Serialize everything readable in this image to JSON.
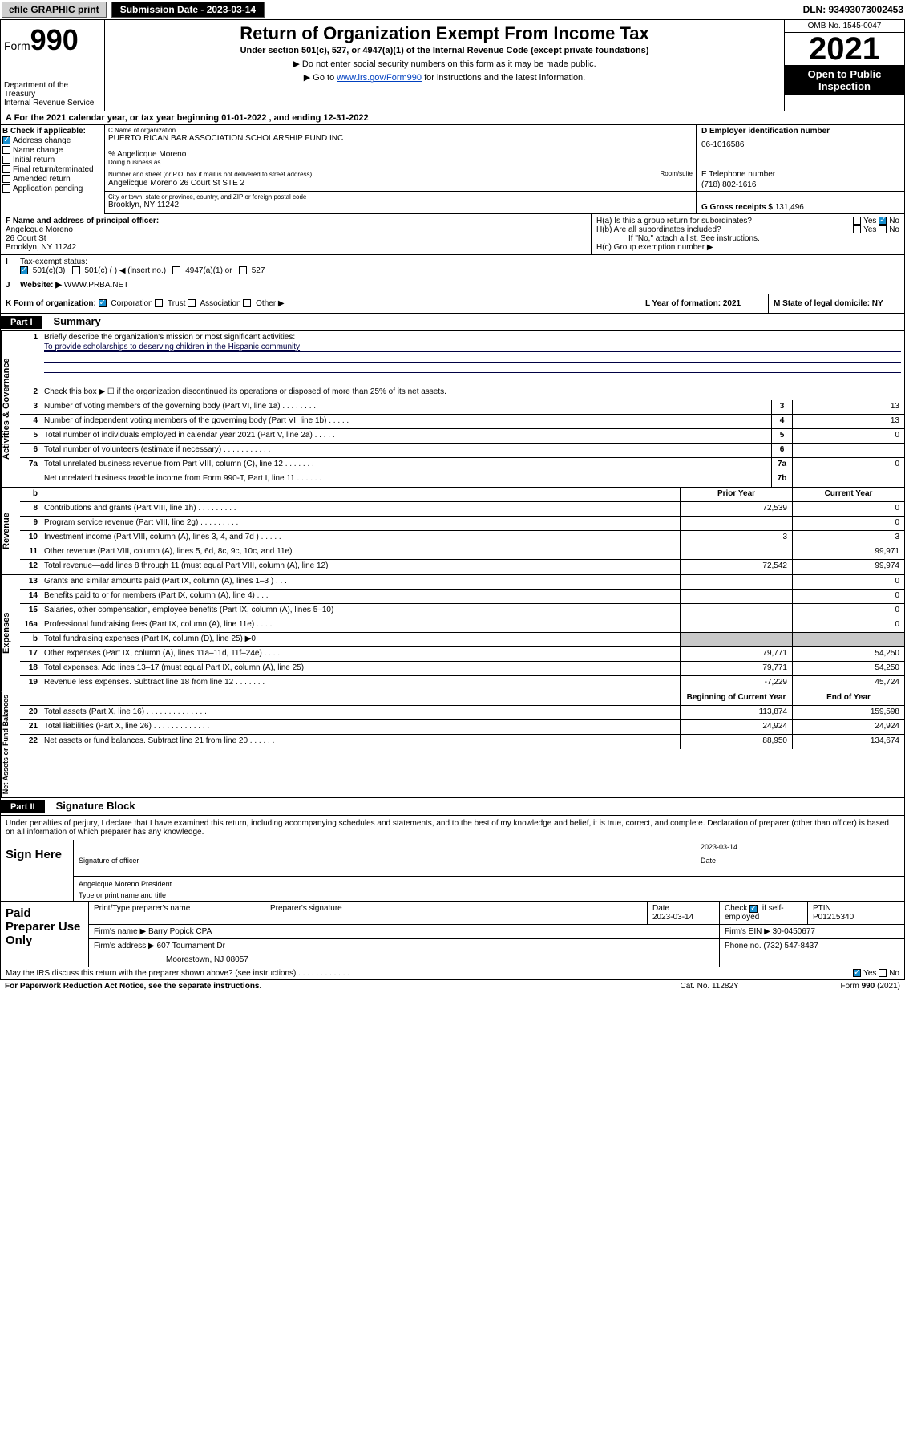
{
  "top": {
    "efile": "efile GRAPHIC print",
    "subdate_lbl": "Submission Date - 2023-03-14",
    "dln": "DLN: 93493073002453"
  },
  "hdr": {
    "form": "Form",
    "formno": "990",
    "dept": "Department of the Treasury",
    "irs": "Internal Revenue Service",
    "title": "Return of Organization Exempt From Income Tax",
    "sub": "Under section 501(c), 527, or 4947(a)(1) of the Internal Revenue Code (except private foundations)",
    "note1": "▶ Do not enter social security numbers on this form as it may be made public.",
    "note2_a": "▶ Go to ",
    "note2_link": "www.irs.gov/Form990",
    "note2_b": " for instructions and the latest information.",
    "omb": "OMB No. 1545-0047",
    "year": "2021",
    "open": "Open to Public Inspection"
  },
  "a": {
    "text": "For the 2021 calendar year, or tax year beginning 01-01-2022   , and ending 12-31-2022"
  },
  "b": {
    "label": "B Check if applicable:",
    "opts": [
      "Address change",
      "Name change",
      "Initial return",
      "Final return/terminated",
      "Amended return",
      "Application pending"
    ],
    "checked": [
      true,
      false,
      false,
      false,
      false,
      false
    ]
  },
  "c": {
    "name_lbl": "C Name of organization",
    "name": "PUERTO RICAN BAR ASSOCIATION SCHOLARSHIP FUND INC",
    "care_lbl": "% Angelicque Moreno",
    "dba_lbl": "Doing business as",
    "street_lbl": "Number and street (or P.O. box if mail is not delivered to street address)",
    "room_lbl": "Room/suite",
    "street": "Angelicque Moreno 26 Court St STE 2",
    "city_lbl": "City or town, state or province, country, and ZIP or foreign postal code",
    "city": "Brooklyn, NY  11242"
  },
  "d": {
    "lbl": "D Employer identification number",
    "val": "06-1016586"
  },
  "e": {
    "lbl": "E Telephone number",
    "val": "(718) 802-1616"
  },
  "g": {
    "lbl": "G Gross receipts $",
    "val": "131,496"
  },
  "f": {
    "lbl": "F  Name and address of principal officer:",
    "name": "Angelcque Moreno",
    "st": "26 Court St",
    "city": "Brooklyn, NY  11242"
  },
  "h": {
    "a": "H(a)  Is this a group return for subordinates?",
    "a_no": true,
    "b": "H(b)  Are all subordinates included?",
    "bnote": "If \"No,\" attach a list. See instructions.",
    "c": "H(c)  Group exemption number ▶"
  },
  "i": {
    "lbl": "Tax-exempt status:",
    "o1": "501(c)(3)",
    "o2": "501(c) (  ) ◀ (insert no.)",
    "o3": "4947(a)(1) or",
    "o4": "527"
  },
  "j": {
    "lbl": "Website: ▶",
    "val": "WWW.PRBA.NET"
  },
  "k": {
    "lbl": "K Form of organization:",
    "o1": "Corporation",
    "o2": "Trust",
    "o3": "Association",
    "o4": "Other ▶"
  },
  "l": {
    "lbl": "L Year of formation: 2021"
  },
  "m": {
    "lbl": "M State of legal domicile: NY"
  },
  "part1": {
    "hdr": "Part I",
    "title": "Summary"
  },
  "summary": {
    "q1": "Briefly describe the organization's mission or most significant activities:",
    "mission": "To provide scholarships to deserving children in the Hispanic community",
    "q2": "Check this box ▶ ☐  if the organization discontinued its operations or disposed of more than 25% of its net assets.",
    "hdr_prior": "Prior Year",
    "hdr_curr": "Current Year",
    "hdr_beg": "Beginning of Current Year",
    "hdr_end": "End of Year"
  },
  "rows_gov": [
    {
      "n": "3",
      "t": "Number of voting members of the governing body (Part VI, line 1a)  .   .   .   .   .   .   .   .",
      "k": "3",
      "v": "13"
    },
    {
      "n": "4",
      "t": "Number of independent voting members of the governing body (Part VI, line 1b)  .   .   .   .   .",
      "k": "4",
      "v": "13"
    },
    {
      "n": "5",
      "t": "Total number of individuals employed in calendar year 2021 (Part V, line 2a)  .   .   .   .   .",
      "k": "5",
      "v": "0"
    },
    {
      "n": "6",
      "t": "Total number of volunteers (estimate if necessary)  .   .   .   .   .   .   .   .   .   .   .",
      "k": "6",
      "v": ""
    },
    {
      "n": "7a",
      "t": "Total unrelated business revenue from Part VIII, column (C), line 12  .   .   .   .   .   .   .",
      "k": "7a",
      "v": "0"
    },
    {
      "n": "",
      "t": "Net unrelated business taxable income from Form 990-T, Part I, line 11  .   .   .   .   .   .",
      "k": "7b",
      "v": ""
    }
  ],
  "rows_rev": [
    {
      "n": "8",
      "t": "Contributions and grants (Part VIII, line 1h)  .   .   .   .   .   .   .   .   .",
      "p": "72,539",
      "c": "0"
    },
    {
      "n": "9",
      "t": "Program service revenue (Part VIII, line 2g)  .   .   .   .   .   .   .   .   .",
      "p": "",
      "c": "0"
    },
    {
      "n": "10",
      "t": "Investment income (Part VIII, column (A), lines 3, 4, and 7d )  .   .   .   .   .",
      "p": "3",
      "c": "3"
    },
    {
      "n": "11",
      "t": "Other revenue (Part VIII, column (A), lines 5, 6d, 8c, 9c, 10c, and 11e)",
      "p": "",
      "c": "99,971"
    },
    {
      "n": "12",
      "t": "Total revenue—add lines 8 through 11 (must equal Part VIII, column (A), line 12)",
      "p": "72,542",
      "c": "99,974"
    }
  ],
  "rows_exp": [
    {
      "n": "13",
      "t": "Grants and similar amounts paid (Part IX, column (A), lines 1–3 )  .   .   .",
      "p": "",
      "c": "0"
    },
    {
      "n": "14",
      "t": "Benefits paid to or for members (Part IX, column (A), line 4)  .   .   .",
      "p": "",
      "c": "0"
    },
    {
      "n": "15",
      "t": "Salaries, other compensation, employee benefits (Part IX, column (A), lines 5–10)",
      "p": "",
      "c": "0"
    },
    {
      "n": "16a",
      "t": "Professional fundraising fees (Part IX, column (A), line 11e)  .   .   .   .",
      "p": "",
      "c": "0"
    },
    {
      "n": "b",
      "t": "Total fundraising expenses (Part IX, column (D), line 25) ▶0",
      "p": "GRAY",
      "c": "GRAY"
    },
    {
      "n": "17",
      "t": "Other expenses (Part IX, column (A), lines 11a–11d, 11f–24e)  .   .   .   .",
      "p": "79,771",
      "c": "54,250"
    },
    {
      "n": "18",
      "t": "Total expenses. Add lines 13–17 (must equal Part IX, column (A), line 25)",
      "p": "79,771",
      "c": "54,250"
    },
    {
      "n": "19",
      "t": "Revenue less expenses. Subtract line 18 from line 12  .   .   .   .   .   .   .",
      "p": "-7,229",
      "c": "45,724"
    }
  ],
  "rows_net": [
    {
      "n": "20",
      "t": "Total assets (Part X, line 16)  .   .   .   .   .   .   .   .   .   .   .   .   .   .",
      "p": "113,874",
      "c": "159,598"
    },
    {
      "n": "21",
      "t": "Total liabilities (Part X, line 26)  .   .   .   .   .   .   .   .   .   .   .   .   .",
      "p": "24,924",
      "c": "24,924"
    },
    {
      "n": "22",
      "t": "Net assets or fund balances. Subtract line 21 from line 20  .   .   .   .   .   .",
      "p": "88,950",
      "c": "134,674"
    }
  ],
  "vtabs": {
    "gov": "Activities & Governance",
    "rev": "Revenue",
    "exp": "Expenses",
    "net": "Net Assets or Fund Balances"
  },
  "part2": {
    "hdr": "Part II",
    "title": "Signature Block"
  },
  "sig": {
    "decl": "Under penalties of perjury, I declare that I have examined this return, including accompanying schedules and statements, and to the best of my knowledge and belief, it is true, correct, and complete. Declaration of preparer (other than officer) is based on all information of which preparer has any knowledge.",
    "here": "Sign Here",
    "off_lbl": "Signature of officer",
    "date_lbl": "Date",
    "date": "2023-03-14",
    "name": "Angelcque Moreno  President",
    "name_lbl": "Type or print name and title"
  },
  "paid": {
    "title": "Paid Preparer Use Only",
    "h1": "Print/Type preparer's name",
    "h2": "Preparer's signature",
    "h3": "Date",
    "h3v": "2023-03-14",
    "h4a": "Check",
    "h4b": "if self-employed",
    "h5": "PTIN",
    "ptin": "P01215340",
    "firm_lbl": "Firm's name    ▶",
    "firm": "Barry Popick CPA",
    "ein_lbl": "Firm's EIN ▶",
    "ein": "30-0450677",
    "addr_lbl": "Firm's address ▶",
    "addr1": "607 Tournament Dr",
    "addr2": "Moorestown, NJ  08057",
    "ph_lbl": "Phone no.",
    "ph": "(732) 547-8437"
  },
  "foot": {
    "q": "May the IRS discuss this return with the preparer shown above? (see instructions)  .   .   .   .   .   .   .   .   .   .   .   .",
    "yes": "Yes",
    "no": "No",
    "pra": "For Paperwork Reduction Act Notice, see the separate instructions.",
    "cat": "Cat. No. 11282Y",
    "form": "Form 990 (2021)"
  }
}
